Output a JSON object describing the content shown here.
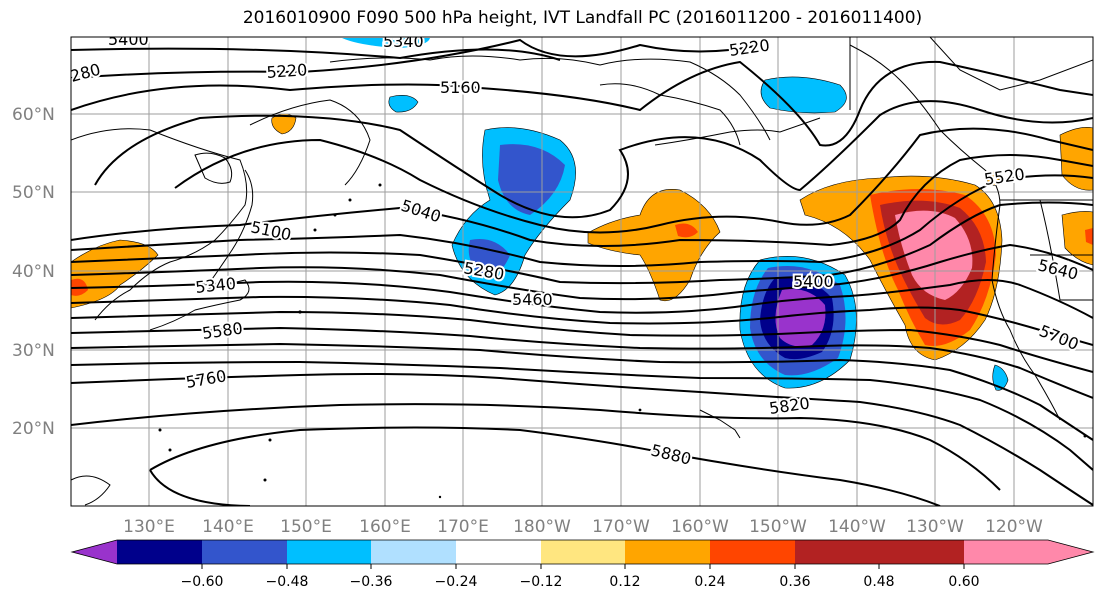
{
  "title": "2016010900 F090 500 hPa height, IVT Landfall PC (2016011200 - 2016011400)",
  "lat_labels": [
    "60°N",
    "50°N",
    "40°N",
    "30°N",
    "20°N"
  ],
  "lon_labels": [
    "130°E",
    "140°E",
    "150°E",
    "160°E",
    "170°E",
    "180°W",
    "170°W",
    "160°W",
    "150°W",
    "140°W",
    "130°W",
    "120°W"
  ],
  "contour_labels": [
    "5400",
    "5340",
    "5220",
    "5160",
    "280",
    "5220",
    "5040",
    "5100",
    "5280",
    "5460",
    "5340",
    "5580",
    "5760",
    "5400",
    "5820",
    "5880",
    "5520",
    "5640",
    "5700"
  ],
  "colorbar": {
    "colors": [
      "#9933cc",
      "#00008b",
      "#3355cc",
      "#00bfff",
      "#b0e0ff",
      "#ffffff",
      "#ffe680",
      "#ffa500",
      "#ff4500",
      "#b22222",
      "#ff88aa"
    ],
    "tick_labels": [
      "−0.60",
      "−0.48",
      "−0.36",
      "−0.24",
      "−0.12",
      "0.12",
      "0.24",
      "0.36",
      "0.48",
      "0.60"
    ]
  }
}
